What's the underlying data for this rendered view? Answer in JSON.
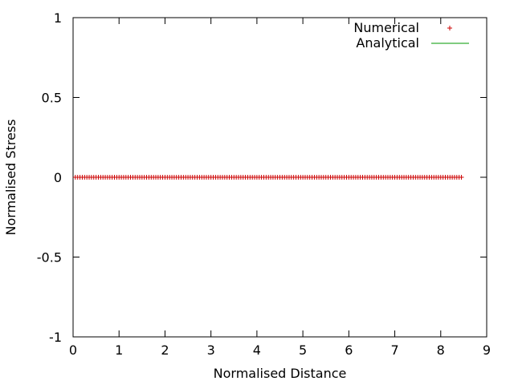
{
  "chart_data": {
    "type": "scatter",
    "title": "",
    "xlabel": "Normalised Distance",
    "ylabel": "Normalised Stress",
    "xlim": [
      0,
      9
    ],
    "ylim": [
      -1,
      1
    ],
    "xticks": [
      0,
      1,
      2,
      3,
      4,
      5,
      6,
      7,
      8,
      9
    ],
    "yticks": [
      -1,
      -0.5,
      0,
      0.5,
      1
    ],
    "grid": false,
    "legend_position": "top-right",
    "series": [
      {
        "name": "Numerical",
        "style": "points",
        "marker": "plus",
        "color": "#cc0000",
        "x_start": 0.05,
        "x_end": 8.45,
        "x_step": 0.05,
        "y": 0
      },
      {
        "name": "Analytical",
        "style": "line",
        "color": "#009900",
        "x": [
          0.05,
          8.45
        ],
        "y": [
          0,
          0
        ]
      }
    ]
  }
}
